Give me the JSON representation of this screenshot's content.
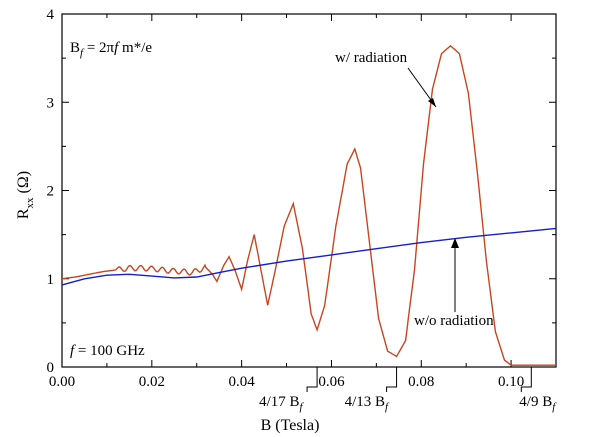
{
  "chart_data": {
    "type": "line",
    "xlabel": "B (Tesla)",
    "ylabel_main": "R",
    "ylabel_sub": "xx",
    "ylabel_unit": "(Ω)",
    "xlim": [
      0,
      0.11
    ],
    "ylim": [
      0,
      4
    ],
    "x_ticks": [
      0.0,
      0.02,
      0.04,
      0.06,
      0.08,
      0.1
    ],
    "x_tick_labels": [
      "0.00",
      "0.02",
      "0.04",
      "0.06",
      "0.08",
      "0.10"
    ],
    "y_ticks": [
      0,
      1,
      2,
      3,
      4
    ],
    "y_tick_labels": [
      "0",
      "1",
      "2",
      "3",
      "4"
    ],
    "series": [
      {
        "name": "w/ radiation",
        "color": "#c8461e",
        "points": [
          [
            0.0,
            1.0
          ],
          [
            0.003,
            1.02
          ],
          [
            0.006,
            1.05
          ],
          [
            0.009,
            1.08
          ],
          [
            0.012,
            1.1
          ],
          [
            0.015,
            1.12
          ],
          [
            0.018,
            1.12
          ],
          [
            0.021,
            1.11
          ],
          [
            0.024,
            1.09
          ],
          [
            0.027,
            1.08
          ],
          [
            0.029,
            1.07
          ],
          [
            0.0305,
            1.1
          ],
          [
            0.032,
            1.13
          ],
          [
            0.0335,
            1.05
          ],
          [
            0.0345,
            0.97
          ],
          [
            0.036,
            1.15
          ],
          [
            0.0372,
            1.25
          ],
          [
            0.0385,
            1.1
          ],
          [
            0.04,
            0.88
          ],
          [
            0.0413,
            1.2
          ],
          [
            0.0428,
            1.5
          ],
          [
            0.0443,
            1.1
          ],
          [
            0.0458,
            0.7
          ],
          [
            0.0475,
            1.1
          ],
          [
            0.0495,
            1.6
          ],
          [
            0.0515,
            1.85
          ],
          [
            0.0535,
            1.35
          ],
          [
            0.0555,
            0.6
          ],
          [
            0.0568,
            0.42
          ],
          [
            0.0585,
            0.7
          ],
          [
            0.061,
            1.6
          ],
          [
            0.0635,
            2.3
          ],
          [
            0.0652,
            2.47
          ],
          [
            0.0665,
            2.25
          ],
          [
            0.0685,
            1.4
          ],
          [
            0.0705,
            0.55
          ],
          [
            0.0725,
            0.18
          ],
          [
            0.0745,
            0.12
          ],
          [
            0.0765,
            0.3
          ],
          [
            0.0785,
            1.1
          ],
          [
            0.0805,
            2.3
          ],
          [
            0.0825,
            3.15
          ],
          [
            0.0845,
            3.55
          ],
          [
            0.0865,
            3.64
          ],
          [
            0.0885,
            3.55
          ],
          [
            0.0905,
            3.1
          ],
          [
            0.0925,
            2.2
          ],
          [
            0.0945,
            1.2
          ],
          [
            0.0965,
            0.4
          ],
          [
            0.0985,
            0.08
          ],
          [
            0.1,
            0.02
          ],
          [
            0.105,
            0.02
          ],
          [
            0.11,
            0.02
          ]
        ]
      },
      {
        "name": "w/o radiation",
        "color": "#1420c8",
        "points": [
          [
            0.0,
            0.93
          ],
          [
            0.005,
            1.0
          ],
          [
            0.01,
            1.04
          ],
          [
            0.015,
            1.05
          ],
          [
            0.02,
            1.03
          ],
          [
            0.025,
            1.01
          ],
          [
            0.03,
            1.02
          ],
          [
            0.035,
            1.07
          ],
          [
            0.04,
            1.12
          ],
          [
            0.05,
            1.2
          ],
          [
            0.06,
            1.27
          ],
          [
            0.07,
            1.34
          ],
          [
            0.08,
            1.41
          ],
          [
            0.09,
            1.47
          ],
          [
            0.1,
            1.52
          ],
          [
            0.11,
            1.57
          ]
        ]
      }
    ],
    "oscillation_note": "small oscillations between 0.012 and 0.032 T",
    "annotations": {
      "formula": "B",
      "formula_sub": "f",
      "formula_rest": " = 2π",
      "formula_f": "f",
      "formula_tail": " m*/e",
      "freq_f": "f",
      "freq_rest": " = 100 GHz",
      "w_rad": "w/ radiation",
      "wo_rad": "w/o radiation",
      "mark1": "4/17 B",
      "mark1_sub": "f",
      "mark1_x": 0.0568,
      "mark2": "4/13 B",
      "mark2_sub": "f",
      "mark2_x": 0.0745,
      "mark3": "4/9 B",
      "mark3_sub": "f",
      "mark3_x": 0.1045
    }
  }
}
